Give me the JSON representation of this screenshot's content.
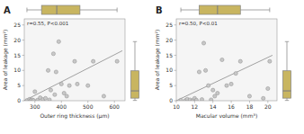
{
  "chart_data": [
    {
      "type": "scatter",
      "title": "A",
      "xlabel": "Outer ring thickness (μm)",
      "ylabel": "Area of leakage (mm²)",
      "annotation": "r=0.55, P<0.001",
      "xlim": [
        260,
        640
      ],
      "ylim": [
        0,
        27
      ],
      "xticks": [
        300,
        400,
        500,
        600
      ],
      "yticks": [
        0,
        5,
        10,
        15,
        20,
        25
      ],
      "grid": false,
      "series": [
        {
          "type": "scatter",
          "color": "#c8c8c8",
          "x": [
            270,
            280,
            285,
            290,
            295,
            300,
            310,
            320,
            330,
            340,
            350,
            355,
            360,
            370,
            375,
            380,
            390,
            400,
            410,
            420,
            430,
            450,
            460,
            500,
            520,
            560,
            610
          ],
          "values": [
            0.1,
            0.5,
            0.2,
            0.3,
            0.1,
            3.0,
            0.2,
            1.0,
            0.4,
            0.8,
            10.0,
            0.3,
            3.5,
            15.5,
            2.0,
            9.5,
            19.5,
            5.5,
            2.5,
            1.5,
            5.0,
            13.0,
            5.5,
            5.0,
            13.0,
            1.5,
            13.0
          ]
        },
        {
          "type": "line",
          "color": "#a0a0a0",
          "x": [
            260,
            630
          ],
          "values": [
            0,
            16.5
          ]
        }
      ],
      "box_x": {
        "color": "#c8b560",
        "whisker_low": 270,
        "q1": 325,
        "median": 382.5,
        "q3": 470,
        "whisker_high": 610
      },
      "box_y": {
        "color": "#c8b560",
        "whisker_low": 0.1,
        "q1": 0.85,
        "median": 3.25,
        "q3": 9.875,
        "whisker_high": 19.5
      }
    },
    {
      "type": "scatter",
      "title": "B",
      "xlabel": "Macular volume (mm³)",
      "ylabel": "Area of leakage (mm²)",
      "annotation": "r=0.50, P<0.01",
      "xlim": [
        10,
        21
      ],
      "ylim": [
        0,
        27
      ],
      "xticks": [
        10,
        12,
        14,
        16,
        18,
        20
      ],
      "yticks": [
        0,
        5,
        10,
        15,
        20,
        25
      ],
      "grid": false,
      "series": [
        {
          "type": "scatter",
          "color": "#c8c8c8",
          "x": [
            10.5,
            11.0,
            11.2,
            11.5,
            11.8,
            12.0,
            12.2,
            12.5,
            12.8,
            13.0,
            13.2,
            13.5,
            13.8,
            14.0,
            14.2,
            14.5,
            15.0,
            15.5,
            16.0,
            16.5,
            17.0,
            18.0,
            19.5,
            20.0,
            20.2
          ],
          "values": [
            0.2,
            0.1,
            0.5,
            0.3,
            0.1,
            0.8,
            0.2,
            9.5,
            0.4,
            19.0,
            10.0,
            5.0,
            0.3,
            3.5,
            1.5,
            2.5,
            13.5,
            5.0,
            5.5,
            9.0,
            13.0,
            1.5,
            0.8,
            4.0,
            13.0
          ]
        },
        {
          "type": "line",
          "color": "#a0a0a0",
          "x": [
            10,
            20.5
          ],
          "values": [
            0,
            15
          ]
        }
      ],
      "box_x": {
        "color": "#c8b560",
        "whisker_low": 10.5,
        "q1": 12.5,
        "median": 14.5,
        "q3": 17.0,
        "whisker_high": 20.2
      },
      "box_y": {
        "color": "#c8b560",
        "whisker_low": 0.1,
        "q1": 0.85,
        "median": 3.25,
        "q3": 9.875,
        "whisker_high": 19.5
      }
    }
  ]
}
